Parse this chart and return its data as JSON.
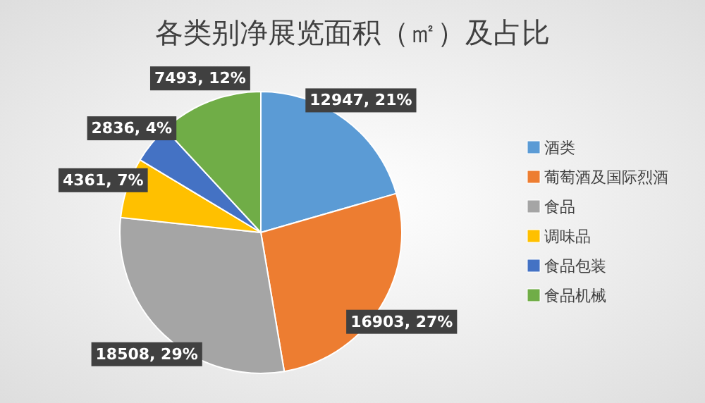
{
  "chart_data": {
    "type": "pie",
    "title": "各类别净展览面积（㎡）及占比",
    "categories": [
      "酒类",
      "葡萄酒及国际烈酒",
      "食品",
      "调味品",
      "食品包装",
      "食品机械"
    ],
    "values": [
      12947,
      16903,
      18508,
      4361,
      2836,
      7493
    ],
    "value_labels": [
      "12947, 21%",
      "16903, 27%",
      "18508, 29%",
      "4361, 7%",
      "2836, 4%",
      "7493, 12%"
    ],
    "colors": [
      "#5b9bd5",
      "#ed7d31",
      "#a5a5a5",
      "#ffc000",
      "#4472c4",
      "#70ad47"
    ],
    "legend": "right"
  }
}
